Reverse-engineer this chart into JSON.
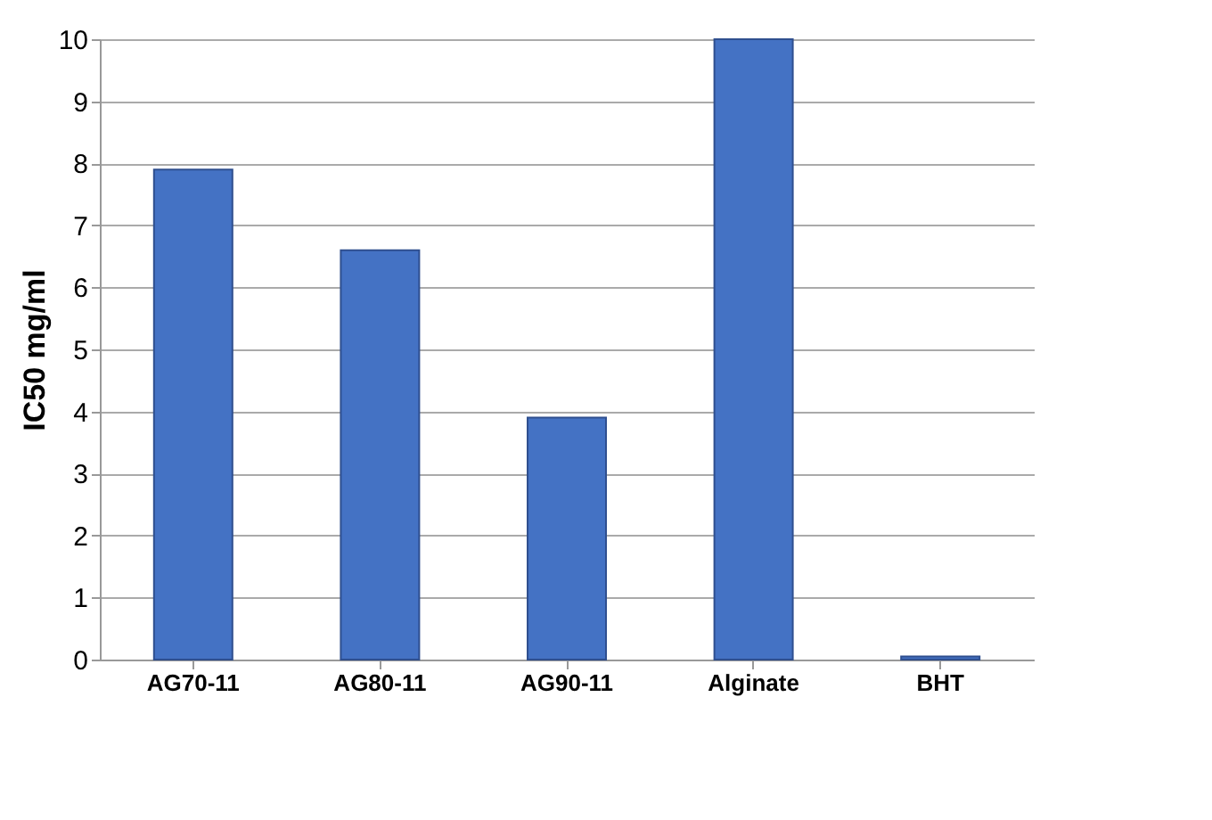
{
  "chart_data": {
    "type": "bar",
    "ylabel": "IC50 mg/ml",
    "categories": [
      "AG70-11",
      "AG80-11",
      "AG90-11",
      "Alginate",
      "BHT"
    ],
    "values": [
      7.9,
      6.6,
      3.9,
      10,
      0.05
    ],
    "color": "#4472c4",
    "ylim": [
      0,
      10
    ],
    "yticks": [
      0,
      1,
      2,
      3,
      4,
      5,
      6,
      7,
      8,
      9,
      10
    ],
    "grid": "y"
  }
}
